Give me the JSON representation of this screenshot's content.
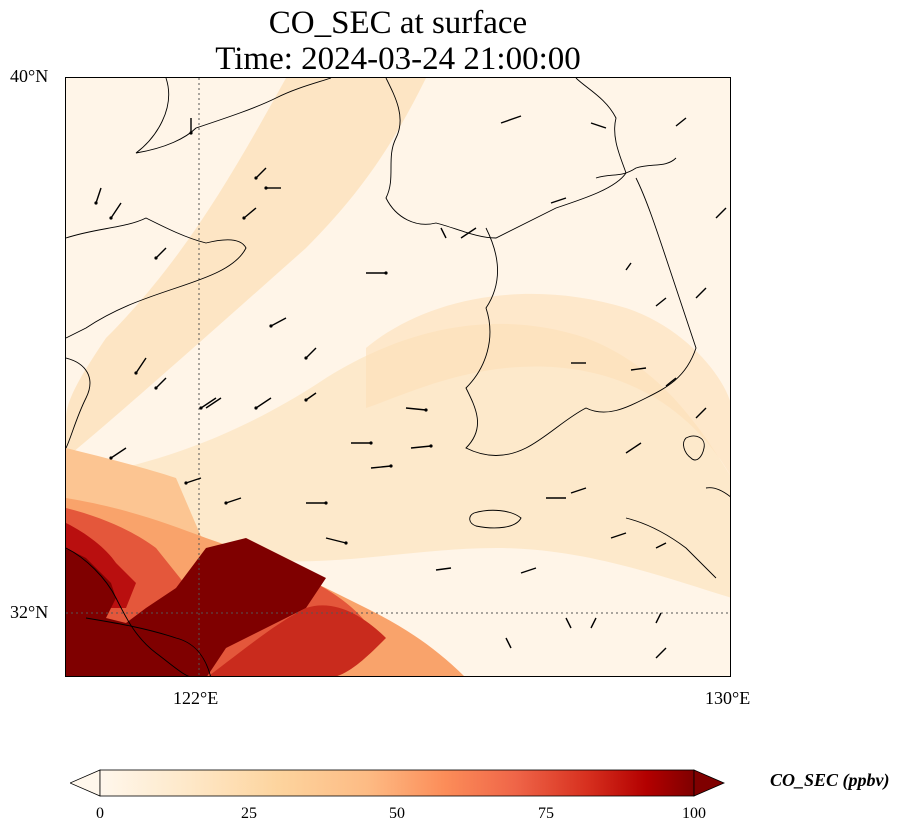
{
  "title": {
    "line1": "CO_SEC at surface",
    "line2": "Time: 2024-03-24 21:00:00"
  },
  "map": {
    "lat_labels": [
      "40°N",
      "32°N"
    ],
    "lon_labels": [
      "122°E",
      "130°E"
    ],
    "extent": {
      "lon_min": 120,
      "lon_max": 130,
      "lat_min": 31,
      "lat_max": 40
    },
    "gridlines": {
      "lons": [
        122
      ],
      "lats": [
        32
      ]
    },
    "field_colormap": "OrRd",
    "wind_vectors": true
  },
  "colorbar": {
    "label": "CO_SEC (ppbv)",
    "ticks": [
      "0",
      "25",
      "50",
      "75",
      "100"
    ],
    "min": 0,
    "max": 100,
    "extend": "both",
    "colors": [
      "#fff7ec",
      "#fee8c8",
      "#fdd49e",
      "#fdbb84",
      "#fc8d59",
      "#ef6548",
      "#d7301f",
      "#b30000",
      "#7f0000"
    ]
  }
}
